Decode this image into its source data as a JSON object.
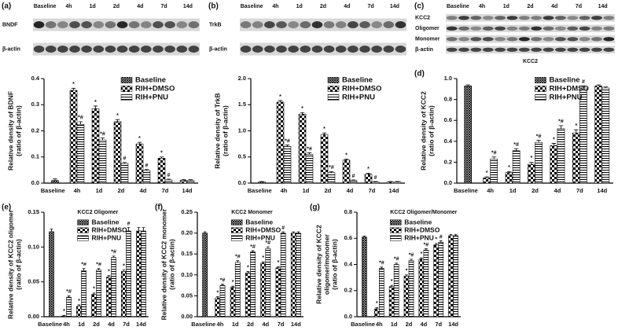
{
  "blots": [
    {
      "panel": "(a)",
      "lanes": [
        "Baseline",
        "4h",
        "1d",
        "2d",
        "4d",
        "7d",
        "14d"
      ],
      "rows": [
        "BNDF",
        "β-actin"
      ]
    },
    {
      "panel": "(b)",
      "lanes": [
        "Baseline",
        "4h",
        "1d",
        "2d",
        "4d",
        "7d",
        "14d"
      ],
      "rows": [
        "TrkB",
        "β-actin"
      ]
    },
    {
      "panel": "(c)",
      "lanes": [
        "Baseline",
        "4h",
        "1d",
        "2d",
        "4d",
        "7d",
        "14d"
      ],
      "rows": [
        "KCC2",
        "Oligomer",
        "Monomer",
        "β-actin"
      ],
      "caption": "KCC2"
    }
  ],
  "chart_data": [
    {
      "type": "bar",
      "ylabel": [
        "Relative density of BDNF",
        "(ratio of β-actin)"
      ],
      "categories": [
        "Baseline",
        "4h",
        "1d",
        "2d",
        "4d",
        "7d",
        "14d"
      ],
      "ylim": [
        0,
        0.4
      ],
      "yticks": [
        {
          "value": 0,
          "label": "0.0"
        },
        {
          "value": 0.1,
          "label": "0.1"
        },
        {
          "value": 0.2,
          "label": "0.2"
        },
        {
          "value": 0.3,
          "label": "0.3"
        },
        {
          "value": 0.4,
          "label": "0.4"
        }
      ],
      "legend": "upper right",
      "series": [
        {
          "name": "Baseline",
          "color": "#000000",
          "pattern": "cross",
          "values": [
            0.01,
            null,
            null,
            null,
            null,
            null,
            null
          ],
          "errors": [
            0.006,
            null,
            null,
            null,
            null,
            null,
            null
          ],
          "markers": [
            null,
            null,
            null,
            null,
            null,
            null,
            null
          ]
        },
        {
          "name": "RIH+DMSO",
          "color": "#000000",
          "pattern": "checker",
          "values": [
            null,
            0.355,
            0.285,
            0.235,
            0.15,
            0.095,
            0.01
          ],
          "errors": [
            null,
            0.008,
            0.01,
            0.008,
            0.006,
            0.005,
            0.003
          ],
          "markers": [
            null,
            "*",
            "*",
            "*",
            "*",
            "*",
            null
          ]
        },
        {
          "name": "RIH+PNU",
          "color": "#000000",
          "pattern": "stripes",
          "values": [
            null,
            0.225,
            0.165,
            0.075,
            0.048,
            0.012,
            0.01
          ],
          "errors": [
            null,
            0.01,
            0.008,
            0.004,
            0.004,
            0.003,
            0.003
          ],
          "markers": [
            null,
            "*#",
            "*#",
            "#",
            "#",
            "#",
            null
          ]
        }
      ]
    },
    {
      "type": "bar",
      "ylabel": [
        "Relative density of TrkB",
        "(ratio of β-actin)"
      ],
      "categories": [
        "Baseline",
        "4h",
        "1d",
        "2d",
        "4d",
        "7d",
        "14d"
      ],
      "ylim": [
        0,
        2.0
      ],
      "yticks": [
        {
          "value": 0,
          "label": "0.0"
        },
        {
          "value": 0.5,
          "label": "0.5"
        },
        {
          "value": 1,
          "label": "1.0"
        },
        {
          "value": 1.5,
          "label": "1.5"
        },
        {
          "value": 2,
          "label": "2.0"
        }
      ],
      "legend": "upper right",
      "series": [
        {
          "name": "Baseline",
          "color": "#000000",
          "pattern": "cross",
          "values": [
            0.02,
            null,
            null,
            null,
            null,
            null,
            null
          ],
          "errors": [
            0.01,
            null,
            null,
            null,
            null,
            null,
            null
          ],
          "markers": [
            null,
            null,
            null,
            null,
            null,
            null,
            null
          ]
        },
        {
          "name": "RIH+DMSO",
          "color": "#000000",
          "pattern": "checker",
          "values": [
            null,
            1.55,
            1.32,
            0.93,
            0.44,
            0.17,
            0.02
          ],
          "errors": [
            null,
            0.03,
            0.03,
            0.03,
            0.02,
            0.02,
            0.01
          ],
          "markers": [
            null,
            "*",
            "*",
            "*",
            "*",
            "*",
            null
          ]
        },
        {
          "name": "RIH+PNU",
          "color": "#000000",
          "pattern": "stripes",
          "values": [
            null,
            0.7,
            0.55,
            0.2,
            0.05,
            0.02,
            0.02
          ],
          "errors": [
            null,
            0.03,
            0.03,
            0.02,
            0.01,
            0.01,
            0.01
          ],
          "markers": [
            null,
            "*#",
            "*#",
            "*#",
            "#",
            "#",
            null
          ]
        }
      ]
    },
    {
      "type": "bar",
      "panel": "(d)",
      "ylabel": [
        "Relative density of KCC2",
        "(ratio of β-actin)"
      ],
      "categories": [
        "Baseline",
        "4h",
        "1d",
        "2d",
        "4d",
        "7d",
        "14d"
      ],
      "ylim": [
        0,
        1.0
      ],
      "yticks": [
        {
          "value": 0,
          "label": "0.0"
        },
        {
          "value": 0.2,
          "label": "0.2"
        },
        {
          "value": 0.4,
          "label": "0.4"
        },
        {
          "value": 0.6,
          "label": "0.6"
        },
        {
          "value": 0.8,
          "label": "0.8"
        },
        {
          "value": 1,
          "label": "1.0"
        }
      ],
      "legend": "upper right",
      "series": [
        {
          "name": "Baseline",
          "color": "#000000",
          "pattern": "cross",
          "values": [
            0.93,
            null,
            null,
            null,
            null,
            null,
            null
          ],
          "errors": [
            0.01,
            null,
            null,
            null,
            null,
            null,
            null
          ],
          "markers": [
            null,
            null,
            null,
            null,
            null,
            null,
            null
          ]
        },
        {
          "name": "RIH+DMSO",
          "color": "#000000",
          "pattern": "checker",
          "values": [
            null,
            0.05,
            0.1,
            0.18,
            0.36,
            0.48,
            0.93
          ],
          "errors": [
            null,
            0.01,
            0.01,
            0.02,
            0.02,
            0.03,
            0.01
          ],
          "markers": [
            null,
            "*",
            "*",
            "*",
            "*",
            "*",
            null
          ]
        },
        {
          "name": "RIH+PNU",
          "color": "#000000",
          "pattern": "stripes",
          "values": [
            null,
            0.23,
            0.31,
            0.39,
            0.52,
            0.91,
            0.91
          ],
          "errors": [
            null,
            0.02,
            0.02,
            0.02,
            0.03,
            0.02,
            0.01
          ],
          "markers": [
            null,
            "*#",
            "*#",
            "*#",
            "*#",
            "#",
            null
          ]
        }
      ]
    },
    {
      "type": "bar",
      "panel": "(e)",
      "subtitle": "KCC2 Oligomer",
      "ylabel": [
        "Relative density of KCC2 oligomer",
        "(ratio of β-actin)"
      ],
      "categories": [
        "Baseline",
        "4h",
        "1d",
        "2d",
        "4d",
        "7d",
        "14d"
      ],
      "ylim": [
        0,
        0.15
      ],
      "yticks": [
        {
          "value": 0,
          "label": "0.00"
        },
        {
          "value": 0.05,
          "label": "0.05"
        },
        {
          "value": 0.1,
          "label": "0.10"
        },
        {
          "value": 0.15,
          "label": "0.15"
        }
      ],
      "legend": "upper right",
      "series": [
        {
          "name": "Baseline",
          "color": "#000000",
          "pattern": "cross",
          "values": [
            0.122,
            null,
            null,
            null,
            null,
            null,
            null
          ],
          "errors": [
            0.004,
            null,
            null,
            null,
            null,
            null,
            null
          ],
          "markers": [
            null,
            null,
            null,
            null,
            null,
            null,
            null
          ]
        },
        {
          "name": "RIH+DMSO",
          "color": "#000000",
          "pattern": "checker",
          "values": [
            null,
            0.001,
            0.015,
            0.032,
            0.057,
            0.065,
            0.123
          ],
          "errors": [
            null,
            0.001,
            0.002,
            0.002,
            0.002,
            0.002,
            0.005
          ],
          "markers": [
            null,
            "*",
            "*",
            "*",
            "*",
            "*",
            null
          ]
        },
        {
          "name": "RIH+PNU",
          "color": "#000000",
          "pattern": "stripes",
          "values": [
            null,
            0.028,
            0.066,
            0.067,
            0.085,
            0.123,
            0.123
          ],
          "errors": [
            null,
            0.002,
            0.003,
            0.002,
            0.002,
            0.005,
            0.005
          ],
          "markers": [
            null,
            "*#",
            "*#",
            "*#",
            "*#",
            "#",
            null
          ]
        }
      ]
    },
    {
      "type": "bar",
      "panel": "(f)",
      "subtitle": "KCC2 Monomer",
      "ylabel": [
        "Relative density of KCC2 monomer",
        "(ratio of β-actin)"
      ],
      "categories": [
        "Baseline",
        "4h",
        "1d",
        "2d",
        "4d",
        "7d",
        "14d"
      ],
      "ylim": [
        0,
        0.25
      ],
      "yticks": [
        {
          "value": 0,
          "label": "0.00"
        },
        {
          "value": 0.05,
          "label": "0.05"
        },
        {
          "value": 0.1,
          "label": "0.10"
        },
        {
          "value": 0.15,
          "label": "0.15"
        },
        {
          "value": 0.2,
          "label": "0.20"
        },
        {
          "value": 0.25,
          "label": "0.25"
        }
      ],
      "legend": "upper right",
      "series": [
        {
          "name": "Baseline",
          "color": "#000000",
          "pattern": "cross",
          "values": [
            0.2,
            null,
            null,
            null,
            null,
            null,
            null
          ],
          "errors": [
            0.003,
            null,
            null,
            null,
            null,
            null,
            null
          ],
          "markers": [
            null,
            null,
            null,
            null,
            null,
            null,
            null
          ]
        },
        {
          "name": "RIH+DMSO",
          "color": "#000000",
          "pattern": "checker",
          "values": [
            null,
            0.045,
            0.07,
            0.105,
            0.128,
            0.117,
            0.2
          ],
          "errors": [
            null,
            0.003,
            0.003,
            0.003,
            0.003,
            0.003,
            0.003
          ],
          "markers": [
            null,
            "*",
            "*",
            "*",
            "*",
            "*",
            null
          ]
        },
        {
          "name": "RIH+PNU",
          "color": "#000000",
          "pattern": "stripes",
          "values": [
            null,
            0.075,
            0.13,
            0.155,
            0.163,
            0.2,
            0.2
          ],
          "errors": [
            null,
            0.003,
            0.004,
            0.003,
            0.004,
            0.003,
            0.003
          ],
          "markers": [
            null,
            "*#",
            "*#",
            "*#",
            "*#",
            "#",
            null
          ]
        }
      ]
    },
    {
      "type": "bar",
      "panel": "(g)",
      "subtitle": "KCC2 Oligomer/Monomer",
      "ylabel": [
        "Relative density of KCC2",
        "oligomer/monomer",
        "(ratio of β-actin)"
      ],
      "categories": [
        "Baseline",
        "4h",
        "1d",
        "2d",
        "4d",
        "7d",
        "14d"
      ],
      "ylim": [
        0,
        0.8
      ],
      "yticks": [
        {
          "value": 0,
          "label": "0.0"
        },
        {
          "value": 0.2,
          "label": "0.2"
        },
        {
          "value": 0.4,
          "label": "0.4"
        },
        {
          "value": 0.6,
          "label": "0.6"
        },
        {
          "value": 0.8,
          "label": "0.8"
        }
      ],
      "legend": "upper right",
      "series": [
        {
          "name": "Baseline",
          "color": "#000000",
          "pattern": "cross",
          "values": [
            0.61,
            null,
            null,
            null,
            null,
            null,
            null
          ],
          "errors": [
            0.008,
            null,
            null,
            null,
            null,
            null,
            null
          ],
          "markers": [
            null,
            null,
            null,
            null,
            null,
            null,
            null
          ]
        },
        {
          "name": "RIH+DMSO",
          "color": "#000000",
          "pattern": "checker",
          "values": [
            null,
            0.06,
            0.23,
            0.31,
            0.44,
            0.55,
            0.62
          ],
          "errors": [
            null,
            0.01,
            0.01,
            0.01,
            0.01,
            0.01,
            0.01
          ],
          "markers": [
            null,
            "*",
            "*",
            "*",
            "*",
            "*",
            null
          ]
        },
        {
          "name": "RIH+PNU",
          "color": "#000000",
          "pattern": "stripes",
          "values": [
            null,
            0.37,
            0.4,
            0.43,
            0.51,
            0.57,
            0.62
          ],
          "errors": [
            null,
            0.01,
            0.01,
            0.01,
            0.01,
            0.01,
            0.01
          ],
          "markers": [
            null,
            "*#",
            "*#",
            "*#",
            "*#",
            "#",
            null
          ]
        }
      ]
    }
  ]
}
